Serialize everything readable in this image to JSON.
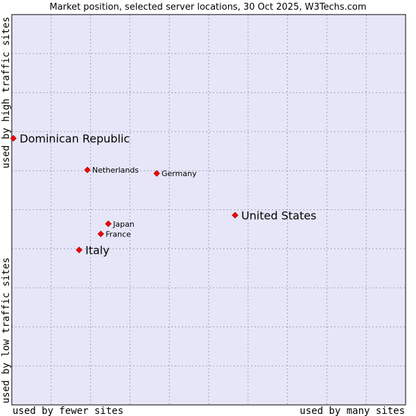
{
  "chart_data": {
    "type": "scatter",
    "title": "Market position, selected server locations, 30 Oct 2025, W3Techs.com",
    "xlabel_left": "used by fewer sites",
    "xlabel_right": "used by many sites",
    "ylabel_bottom": "used by low traffic sites",
    "ylabel_top": "used by high traffic sites",
    "xlim": [
      0,
      100
    ],
    "ylim": [
      0,
      100
    ],
    "grid": true,
    "points": [
      {
        "label": "Dominican Republic",
        "x": 0.4,
        "y": 68.3,
        "size": "large"
      },
      {
        "label": "Netherlands",
        "x": 19.2,
        "y": 60.2,
        "size": "small"
      },
      {
        "label": "Germany",
        "x": 36.8,
        "y": 59.3,
        "size": "small"
      },
      {
        "label": "United States",
        "x": 56.7,
        "y": 48.6,
        "size": "large"
      },
      {
        "label": "Japan",
        "x": 24.5,
        "y": 46.4,
        "size": "small"
      },
      {
        "label": "France",
        "x": 22.6,
        "y": 43.8,
        "size": "small"
      },
      {
        "label": "Italy",
        "x": 17.1,
        "y": 39.7,
        "size": "large"
      }
    ],
    "colors": {
      "plot_background": "#e6e6f8",
      "point_fill": "#ff0000",
      "point_stroke": "#b00000",
      "frame": "#000000"
    }
  }
}
